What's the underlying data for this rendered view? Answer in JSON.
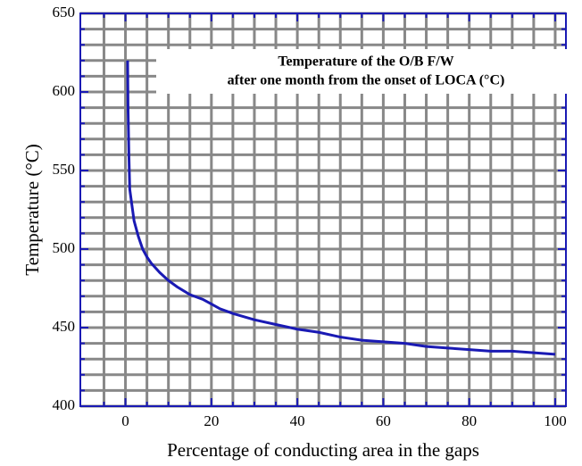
{
  "chart_data": {
    "type": "line",
    "annotation": [
      "Temperature of the O/B F/W",
      "after one month from the onset of LOCA (°C)"
    ],
    "xlabel": "Percentage of conducting area in the gaps",
    "ylabel": "Temperature (°C)",
    "x": [
      0.5,
      0.6,
      0.8,
      1,
      1.5,
      2,
      3,
      4,
      5,
      6,
      8,
      10,
      12,
      15,
      18,
      20,
      22,
      25,
      30,
      35,
      40,
      45,
      50,
      55,
      60,
      65,
      70,
      75,
      80,
      85,
      90,
      95,
      100
    ],
    "series": [
      {
        "name": "Temperature",
        "color": "#1a1ab4",
        "values": [
          620,
          590,
          560,
          538,
          528,
          518,
          508,
          500,
          495,
          491,
          485,
          480,
          476,
          471,
          468,
          465,
          462,
          459,
          455,
          452,
          449,
          447,
          444,
          442,
          441,
          440,
          438,
          437,
          436,
          435,
          435,
          434,
          433
        ]
      }
    ],
    "xlim": [
      -10.5,
      102.5
    ],
    "ylim": [
      400,
      650
    ],
    "xticks": [
      0,
      20,
      40,
      60,
      80,
      100
    ],
    "yticks": [
      400,
      450,
      500,
      550,
      600,
      650
    ],
    "xminorticks": [
      -5,
      5,
      10,
      15,
      25,
      30,
      35,
      45,
      50,
      55,
      65,
      70,
      75,
      85,
      90,
      95
    ],
    "yminorticks": [
      410,
      420,
      430,
      440,
      460,
      470,
      480,
      490,
      510,
      520,
      530,
      540,
      560,
      570,
      580,
      590,
      610,
      620,
      630,
      640
    ],
    "grid": true,
    "grid_color": "#888888",
    "axis_color": "#1a1ab4"
  }
}
